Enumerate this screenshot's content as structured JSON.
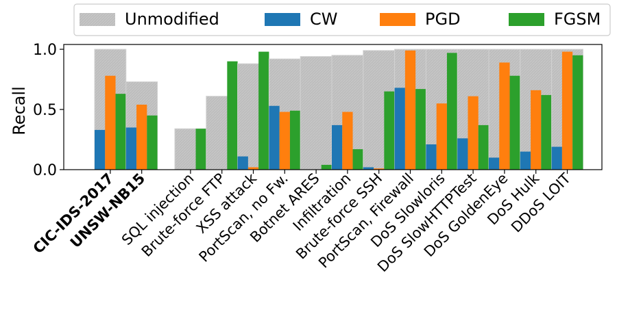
{
  "chart_data": {
    "type": "bar",
    "title": "",
    "xlabel": "",
    "ylabel": "Recall",
    "ylim": [
      0,
      1.04
    ],
    "yticks": [
      0.0,
      0.5,
      1.0
    ],
    "ytick_labels": [
      "0.0",
      "0.5",
      "1.0"
    ],
    "legend_position": "top",
    "categories": [
      "CIC-IDS-2017",
      "UNSW-NB15",
      "SQL injection",
      "Brute-force FTP",
      "XSS attack",
      "PortScan, no Fw.",
      "Botnet ARES",
      "Infiltration",
      "Brute-force SSH",
      "PortScan, Firewall",
      "DoS Slowloris",
      "DoS SlowHTTPTest",
      "DoS GoldenEye",
      "DoS Hulk",
      "DDoS LOIT"
    ],
    "bold_categories": [
      "CIC-IDS-2017",
      "UNSW-NB15"
    ],
    "series": [
      {
        "name": "Unmodified",
        "color": "#bdbdbd",
        "values": [
          1.0,
          0.73,
          0.34,
          0.61,
          0.88,
          0.92,
          0.94,
          0.95,
          0.99,
          1.0,
          1.0,
          1.0,
          1.0,
          1.0,
          1.0
        ]
      },
      {
        "name": "CW",
        "color": "#1f77b4",
        "values": [
          0.33,
          0.35,
          0.0,
          0.0,
          0.11,
          0.53,
          0.0,
          0.37,
          0.02,
          0.68,
          0.21,
          0.26,
          0.1,
          0.15,
          0.19
        ]
      },
      {
        "name": "PGD",
        "color": "#ff7f0e",
        "values": [
          0.78,
          0.54,
          0.0,
          0.0,
          0.02,
          0.48,
          0.0,
          0.48,
          0.01,
          0.99,
          0.55,
          0.61,
          0.89,
          0.66,
          0.98
        ]
      },
      {
        "name": "FGSM",
        "color": "#2ca02c",
        "values": [
          0.63,
          0.45,
          0.34,
          0.9,
          0.98,
          0.49,
          0.04,
          0.17,
          0.65,
          0.67,
          0.97,
          0.37,
          0.78,
          0.62,
          0.95
        ]
      }
    ]
  }
}
